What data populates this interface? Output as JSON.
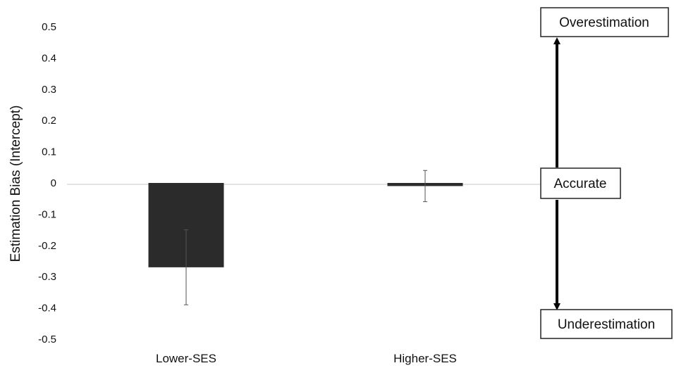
{
  "chart_data": {
    "type": "bar",
    "categories": [
      "Lower-SES",
      "Higher-SES"
    ],
    "values": [
      -0.27,
      -0.01
    ],
    "errors": [
      0.12,
      0.05
    ],
    "ylabel": "Estimation Bias (Intercept)",
    "xlabel": "",
    "ylim": [
      -0.5,
      0.5
    ],
    "yticks": [
      0.5,
      0.4,
      0.3,
      0.2,
      0.1,
      0,
      -0.1,
      -0.2,
      -0.3,
      -0.4,
      -0.5
    ],
    "ytick_labels": [
      "0.5",
      "0.4",
      "0.3",
      "0.2",
      "0.1",
      "0",
      "-0.1",
      "-0.2",
      "-0.3",
      "-0.4",
      "-0.5"
    ],
    "grid": false,
    "annotations": {
      "top": "Overestimation",
      "middle": "Accurate",
      "bottom": "Underestimation"
    },
    "colors": {
      "bar": "#2b2b2b",
      "zero_line": "#c8c8c8",
      "arrow": "#000000"
    }
  }
}
